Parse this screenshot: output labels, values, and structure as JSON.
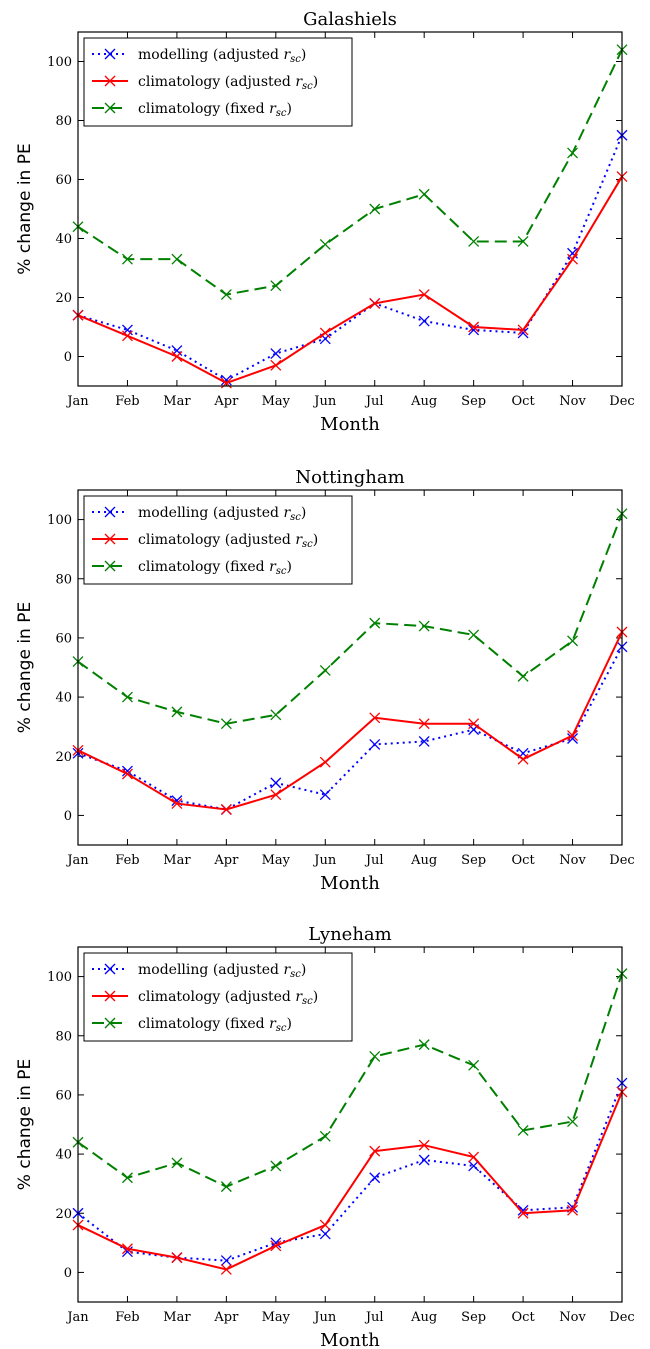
{
  "figure": {
    "legend_labels": [
      "modelling (adjusted ",
      "climatology (adjusted ",
      "climatology (fixed "
    ],
    "legend_symbol": "r",
    "legend_subscript": "sc",
    "legend_close": ")"
  },
  "chart_data": [
    {
      "type": "line",
      "title": "Galashiels",
      "xlabel": "Month",
      "ylabel": "% change in PE",
      "categories": [
        "Jan",
        "Feb",
        "Mar",
        "Apr",
        "May",
        "Jun",
        "Jul",
        "Aug",
        "Sep",
        "Oct",
        "Nov",
        "Dec"
      ],
      "ylim": [
        -10,
        110
      ],
      "yticks": [
        0,
        20,
        40,
        60,
        80,
        100
      ],
      "legend": "top-left",
      "series": [
        {
          "name": "modelling (adjusted r_sc)",
          "color": "#0000ff",
          "style": "dotted",
          "values": [
            14,
            9,
            2,
            -8,
            1,
            6,
            18,
            12,
            9,
            8,
            35,
            75
          ]
        },
        {
          "name": "climatology (adjusted r_sc)",
          "color": "#ff0000",
          "style": "solid",
          "values": [
            14,
            7,
            0,
            -9,
            -3,
            8,
            18,
            21,
            10,
            9,
            33,
            61
          ]
        },
        {
          "name": "climatology (fixed r_sc)",
          "color": "#008000",
          "style": "dashed",
          "values": [
            44,
            33,
            33,
            21,
            24,
            38,
            50,
            55,
            39,
            39,
            69,
            104
          ]
        }
      ]
    },
    {
      "type": "line",
      "title": "Nottingham",
      "xlabel": "Month",
      "ylabel": "% change in PE",
      "categories": [
        "Jan",
        "Feb",
        "Mar",
        "Apr",
        "May",
        "Jun",
        "Jul",
        "Aug",
        "Sep",
        "Oct",
        "Nov",
        "Dec"
      ],
      "ylim": [
        -10,
        110
      ],
      "yticks": [
        0,
        20,
        40,
        60,
        80,
        100
      ],
      "legend": "top-left",
      "series": [
        {
          "name": "modelling (adjusted r_sc)",
          "color": "#0000ff",
          "style": "dotted",
          "values": [
            21,
            15,
            5,
            2,
            11,
            7,
            24,
            25,
            29,
            21,
            26,
            57
          ]
        },
        {
          "name": "climatology (adjusted r_sc)",
          "color": "#ff0000",
          "style": "solid",
          "values": [
            22,
            14,
            4,
            2,
            7,
            18,
            33,
            31,
            31,
            19,
            27,
            62
          ]
        },
        {
          "name": "climatology (fixed r_sc)",
          "color": "#008000",
          "style": "dashed",
          "values": [
            52,
            40,
            35,
            31,
            34,
            49,
            65,
            64,
            61,
            47,
            59,
            102
          ]
        }
      ]
    },
    {
      "type": "line",
      "title": "Lyneham",
      "xlabel": "Month",
      "ylabel": "% change in PE",
      "categories": [
        "Jan",
        "Feb",
        "Mar",
        "Apr",
        "May",
        "Jun",
        "Jul",
        "Aug",
        "Sep",
        "Oct",
        "Nov",
        "Dec"
      ],
      "ylim": [
        -10,
        110
      ],
      "yticks": [
        0,
        20,
        40,
        60,
        80,
        100
      ],
      "legend": "top-left",
      "series": [
        {
          "name": "modelling (adjusted r_sc)",
          "color": "#0000ff",
          "style": "dotted",
          "values": [
            20,
            7,
            5,
            4,
            10,
            13,
            32,
            38,
            36,
            21,
            22,
            64
          ]
        },
        {
          "name": "climatology (adjusted r_sc)",
          "color": "#ff0000",
          "style": "solid",
          "values": [
            16,
            8,
            5,
            1,
            9,
            16,
            41,
            43,
            39,
            20,
            21,
            61
          ]
        },
        {
          "name": "climatology (fixed r_sc)",
          "color": "#008000",
          "style": "dashed",
          "values": [
            44,
            32,
            37,
            29,
            36,
            46,
            73,
            77,
            70,
            48,
            51,
            101
          ]
        }
      ]
    }
  ]
}
